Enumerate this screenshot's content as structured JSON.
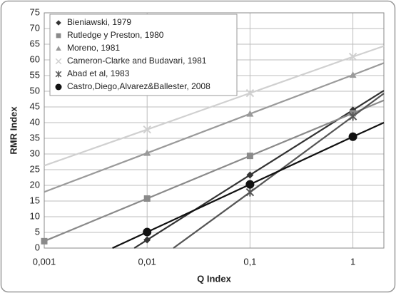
{
  "chart_data": {
    "type": "line",
    "x_scale": "log",
    "grid": true,
    "legend_position": "upper-left",
    "x_label": "Q Index",
    "y_label": "RMR Index",
    "xlim": [
      0.001,
      2
    ],
    "ylim": [
      0,
      75
    ],
    "xticks": [
      {
        "value": 0.001,
        "label": "0,001"
      },
      {
        "value": 0.01,
        "label": "0,01"
      },
      {
        "value": 0.1,
        "label": "0,1"
      },
      1
    ],
    "yticks": [
      0,
      5,
      10,
      15,
      20,
      25,
      30,
      35,
      40,
      45,
      50,
      55,
      60,
      65,
      70,
      75
    ],
    "series": [
      {
        "name": "Bieniawski, 1979",
        "color": "#333333",
        "marker": "diamond",
        "x": [
          0.0075,
          0.01,
          0.1,
          1,
          2
        ],
        "values": [
          0,
          2.6,
          23.3,
          44,
          50.2
        ]
      },
      {
        "name": "Rutledge y Preston, 1980",
        "color": "#8a8a8a",
        "marker": "square",
        "x": [
          0.001,
          0.01,
          0.1,
          1,
          2
        ],
        "values": [
          2.2,
          15.8,
          29.4,
          43,
          47.1
        ]
      },
      {
        "name": "Moreno, 1981",
        "color": "#9a9a9a",
        "marker": "triangle",
        "x": [
          0.001,
          0.01,
          0.1,
          1,
          2
        ],
        "values": [
          17.9,
          30.3,
          42.8,
          55.2,
          59
        ]
      },
      {
        "name": "Cameron-Clarke and Budavari, 1981",
        "color": "#d0d0d0",
        "marker": "x",
        "x": [
          0.001,
          0.01,
          0.1,
          1,
          2
        ],
        "values": [
          26.3,
          37.8,
          49.4,
          61,
          64.4
        ]
      },
      {
        "name": "Abad et al, 1983",
        "color": "#555555",
        "marker": "star",
        "x": [
          0.018,
          0.1,
          1,
          2
        ],
        "values": [
          0,
          17.8,
          42,
          49.3
        ]
      },
      {
        "name": "Castro,Diego,Alvarez&Ballester, 2008",
        "color": "#111111",
        "marker": "circle",
        "x": [
          0.0046,
          0.01,
          0.1,
          1,
          2
        ],
        "values": [
          0,
          5.1,
          20.3,
          35.5,
          40
        ]
      }
    ]
  }
}
